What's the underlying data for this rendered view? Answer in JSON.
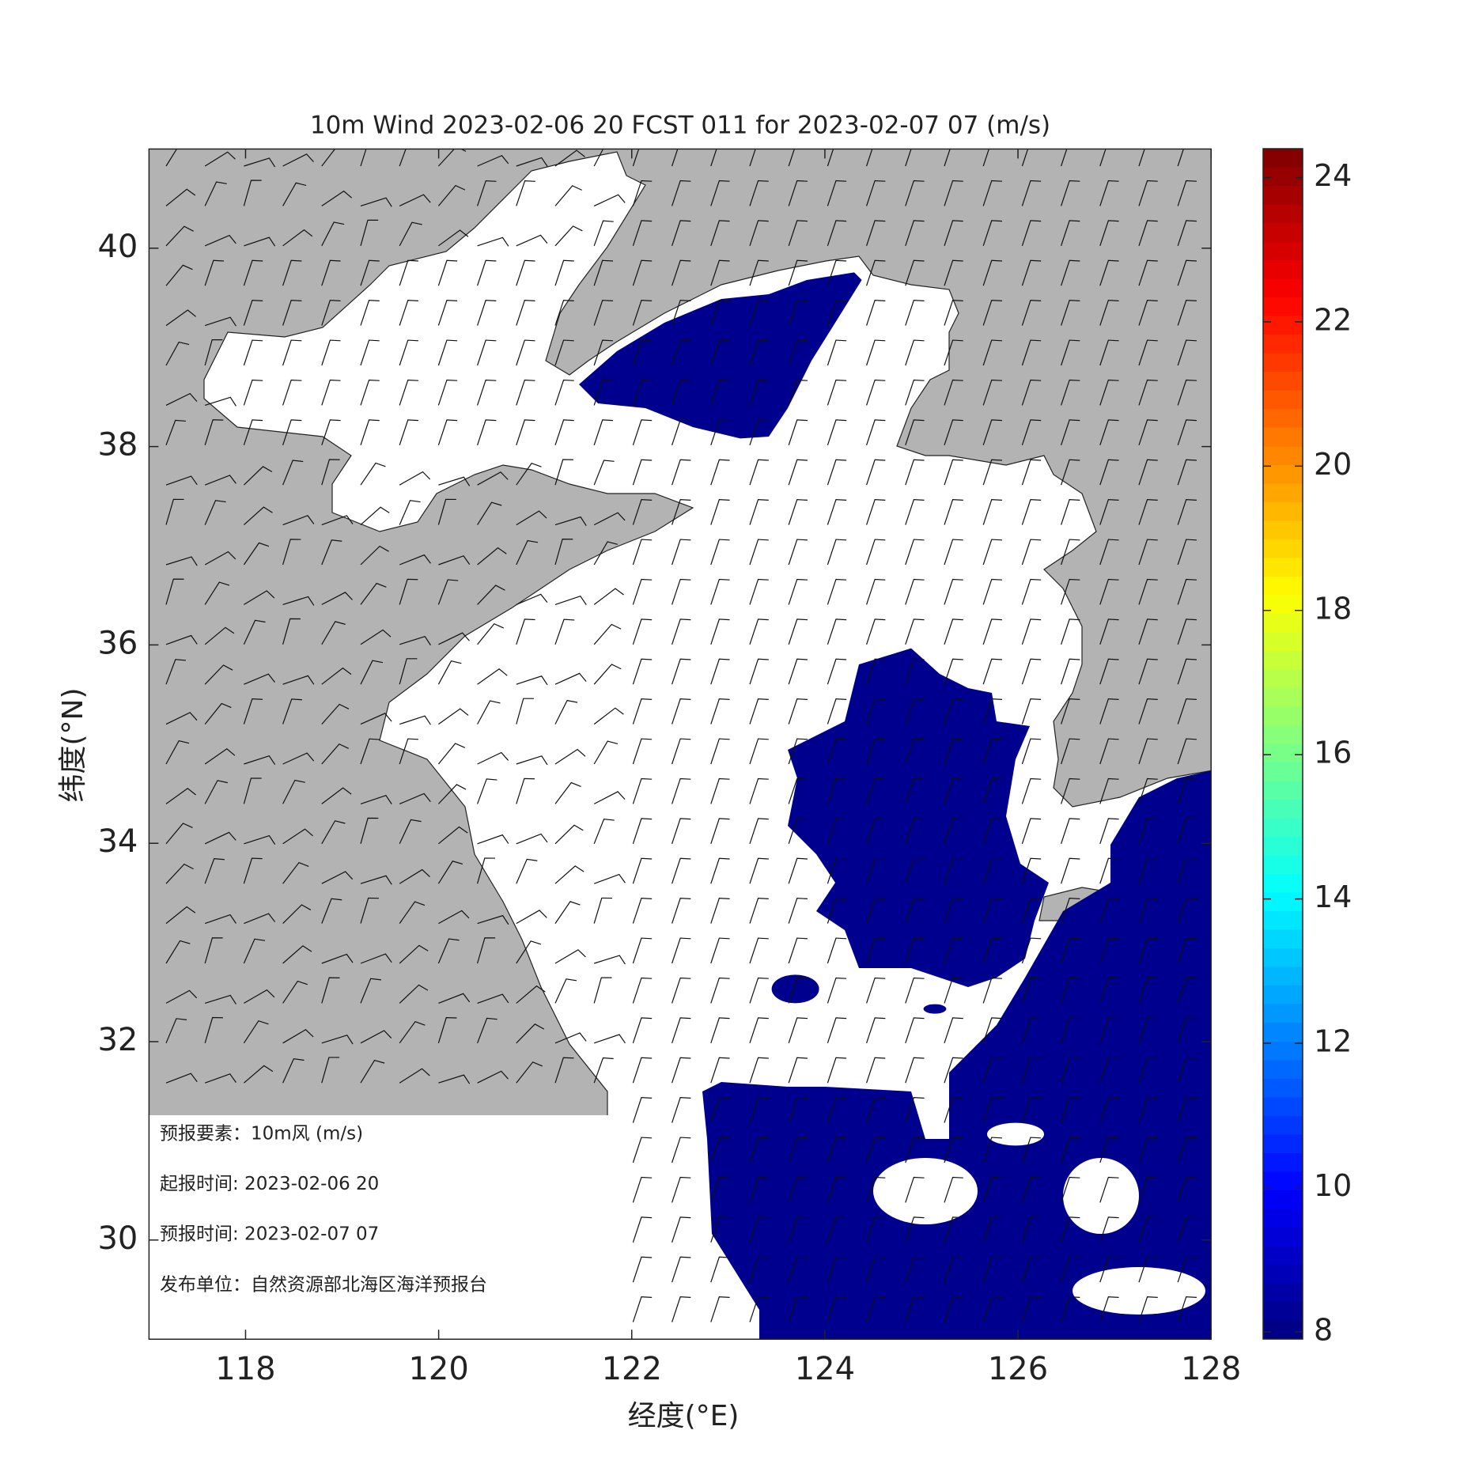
{
  "chart_data": {
    "type": "wind-map",
    "title": "10m Wind 2023-02-06 20 FCST 011 for 2023-02-07 07 (m/s)",
    "x_label": "经度(°E)",
    "y_label": "纬度(°N)",
    "xlim": [
      117,
      128
    ],
    "xticks": [
      118,
      120,
      122,
      124,
      126,
      128
    ],
    "ylim": [
      29,
      41
    ],
    "yticks": [
      30,
      32,
      34,
      36,
      38,
      40
    ],
    "colorbar": {
      "colormap": "jet",
      "lim": [
        7.9,
        24.4
      ],
      "ticks": [
        8,
        10,
        12,
        14,
        16,
        18,
        20,
        22,
        24
      ]
    },
    "info_box": [
      "预报要素：10m风  (m/s)",
      "起报时间: 2023-02-06 20",
      "预报时间: 2023-02-07 07",
      "发布单位：自然资源部北海区海洋预报台"
    ]
  }
}
